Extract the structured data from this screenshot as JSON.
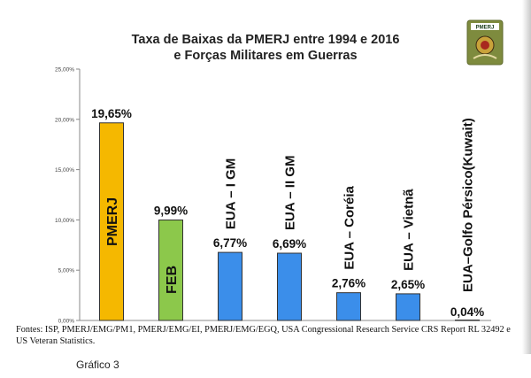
{
  "title_line1": "Taxa de Baixas da PMERJ entre 1994 e 2016",
  "title_line2": "e Forças Militares em Guerras",
  "logo_text": "PMERJ",
  "source_text": "Fontes: ISP, PMERJ/EMG/PM1, PMERJ/EMG/EI, PMERJ/EMG/EGQ, USA Congressional Research Service CRS Report RL 32492 e US Veteran Statistics.",
  "caption": "Gráfico 3",
  "colors": {
    "pmerj": "#f5b800",
    "feb": "#8cc84b",
    "usa": "#3b8eea"
  },
  "chart_data": {
    "type": "bar",
    "title": "Taxa de Baixas da PMERJ entre 1994 e 2016 e Forças Militares em Guerras",
    "categories": [
      "PMERJ",
      "FEB",
      "EUA – I GM",
      "EUA – II GM",
      "EUA – Coréia",
      "EUA – Vietnã",
      "EUA–Golfo Pérsico(Kuwait)"
    ],
    "values": [
      19.65,
      9.99,
      6.77,
      6.69,
      2.76,
      2.65,
      0.04
    ],
    "value_labels": [
      "19,65%",
      "9,99%",
      "6,77%",
      "6,69%",
      "2,76%",
      "2,65%",
      "0,04%"
    ],
    "bar_colors": [
      "pmerj",
      "feb",
      "usa",
      "usa",
      "usa",
      "usa",
      "usa"
    ],
    "ylim": [
      0,
      25
    ],
    "yticks": [
      0,
      5,
      10,
      15,
      20,
      25
    ],
    "ytick_labels": [
      "0,00%",
      "5,00%",
      "10,00%",
      "15,00%",
      "20,00%",
      "25,00%"
    ],
    "grid": false
  }
}
